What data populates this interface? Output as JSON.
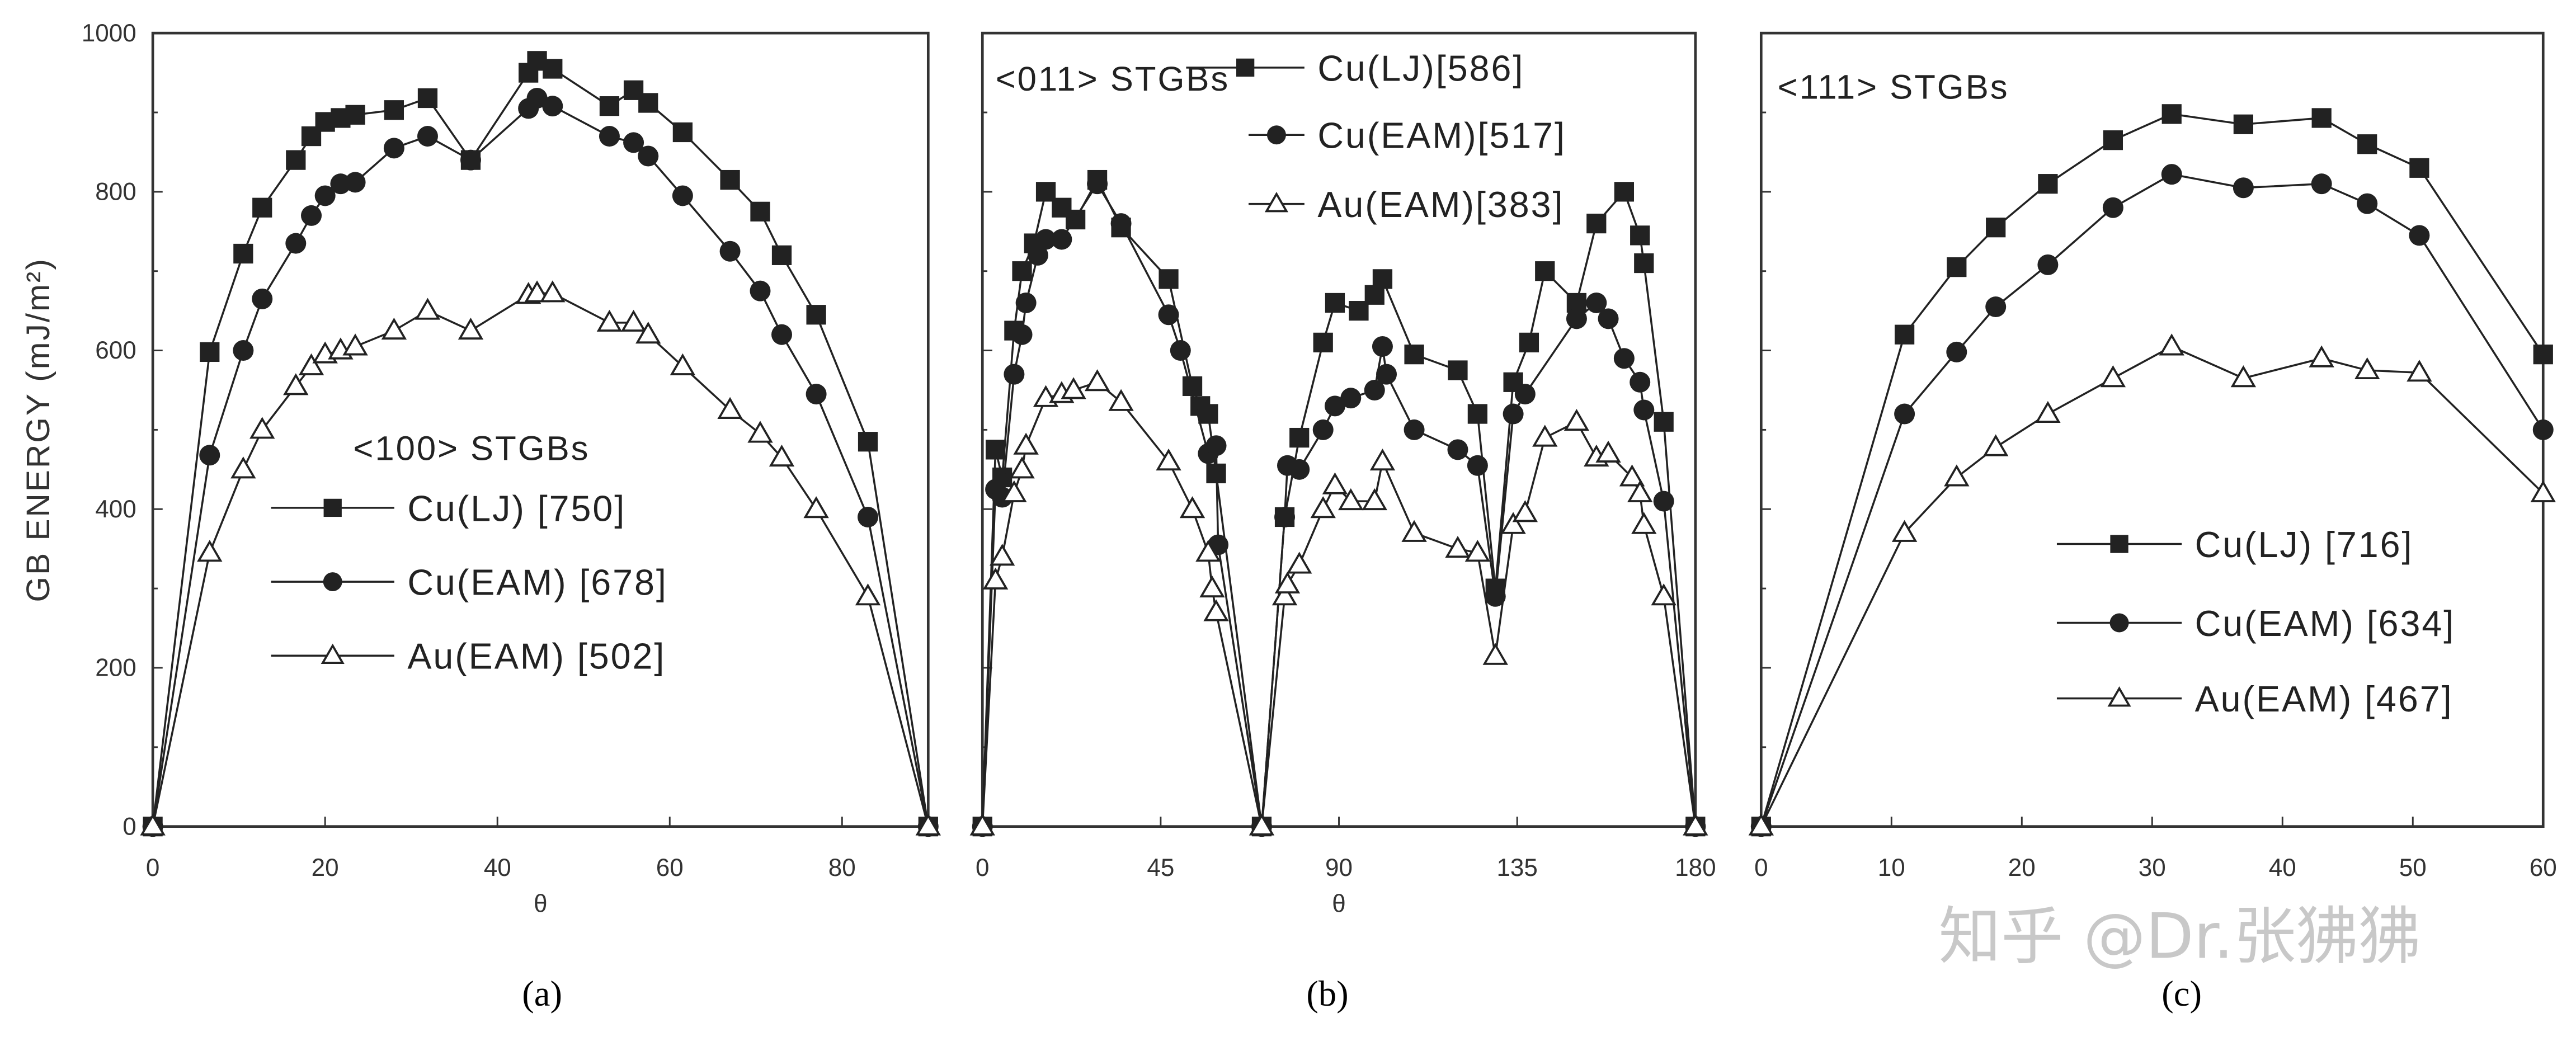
{
  "chart_data": [
    {
      "type": "line",
      "panel_label": "(a)",
      "title": "<100> STGBs",
      "xlabel": "θ",
      "ylabel": "GB ENERGY (mJ/m²)",
      "xlim": [
        0,
        90
      ],
      "ylim": [
        0,
        1000
      ],
      "xticks": [
        "0",
        "20",
        "40",
        "60",
        "80"
      ],
      "xtick_values": [
        0,
        20,
        40,
        60,
        80
      ],
      "yticks": [
        "0",
        "200",
        "400",
        "600",
        "800",
        "1000"
      ],
      "ytick_values": [
        0,
        200,
        400,
        600,
        800,
        1000
      ],
      "series": [
        {
          "name": "Cu(LJ)",
          "label": "Cu(LJ) [750]",
          "marker": "square",
          "points": [
            [
              0,
              0
            ],
            [
              6.6,
              598
            ],
            [
              10.5,
              722
            ],
            [
              12.7,
              780
            ],
            [
              16.6,
              840
            ],
            [
              18.4,
              870
            ],
            [
              20,
              888
            ],
            [
              21.8,
              893
            ],
            [
              23.5,
              897
            ],
            [
              28,
              903
            ],
            [
              31.9,
              918
            ],
            [
              36.9,
              840
            ],
            [
              43.6,
              950
            ],
            [
              44.6,
              965
            ],
            [
              46.4,
              955
            ],
            [
              53,
              908
            ],
            [
              55.8,
              928
            ],
            [
              57.5,
              912
            ],
            [
              61.5,
              875
            ],
            [
              67,
              815
            ],
            [
              70.5,
              775
            ],
            [
              73,
              720
            ],
            [
              77,
              645
            ],
            [
              83,
              485
            ],
            [
              90,
              0
            ]
          ]
        },
        {
          "name": "Cu(EAM)",
          "label": "Cu(EAM) [678]",
          "marker": "circle",
          "points": [
            [
              0,
              0
            ],
            [
              6.6,
              468
            ],
            [
              10.5,
              600
            ],
            [
              12.7,
              665
            ],
            [
              16.6,
              735
            ],
            [
              18.4,
              770
            ],
            [
              20,
              795
            ],
            [
              21.8,
              810
            ],
            [
              23.5,
              812
            ],
            [
              28,
              855
            ],
            [
              31.9,
              870
            ],
            [
              36.9,
              840
            ],
            [
              43.6,
              905
            ],
            [
              44.6,
              918
            ],
            [
              46.4,
              908
            ],
            [
              53,
              870
            ],
            [
              55.8,
              862
            ],
            [
              57.5,
              845
            ],
            [
              61.5,
              795
            ],
            [
              67,
              725
            ],
            [
              70.5,
              675
            ],
            [
              73,
              620
            ],
            [
              77,
              545
            ],
            [
              83,
              390
            ],
            [
              90,
              0
            ]
          ]
        },
        {
          "name": "Au(EAM)",
          "label": "Au(EAM) [502]",
          "marker": "triangle",
          "points": [
            [
              0,
              0
            ],
            [
              6.6,
              345
            ],
            [
              10.5,
              450
            ],
            [
              12.7,
              500
            ],
            [
              16.6,
              555
            ],
            [
              18.4,
              580
            ],
            [
              20,
              595
            ],
            [
              21.8,
              600
            ],
            [
              23.5,
              605
            ],
            [
              28,
              625
            ],
            [
              31.9,
              650
            ],
            [
              36.9,
              625
            ],
            [
              43.6,
              670
            ],
            [
              44.6,
              672
            ],
            [
              46.4,
              672
            ],
            [
              53,
              635
            ],
            [
              55.8,
              635
            ],
            [
              57.5,
              620
            ],
            [
              61.5,
              580
            ],
            [
              67,
              525
            ],
            [
              70.5,
              495
            ],
            [
              73,
              465
            ],
            [
              77,
              400
            ],
            [
              83,
              290
            ],
            [
              90,
              0
            ]
          ]
        }
      ]
    },
    {
      "type": "line",
      "panel_label": "(b)",
      "title": "<011> STGBs",
      "xlabel": "θ",
      "xlim": [
        0,
        180
      ],
      "ylim": [
        0,
        1000
      ],
      "xticks": [
        "0",
        "45",
        "90",
        "135",
        "180"
      ],
      "xtick_values": [
        0,
        45,
        90,
        135,
        180
      ],
      "series": [
        {
          "name": "Cu(LJ)",
          "label": "Cu(LJ)[586]",
          "marker": "square",
          "points": [
            [
              0,
              0
            ],
            [
              3.3,
              475
            ],
            [
              5,
              440
            ],
            [
              8,
              625
            ],
            [
              10,
              700
            ],
            [
              13,
              735
            ],
            [
              16,
              800
            ],
            [
              20,
              780
            ],
            [
              23.5,
              765
            ],
            [
              29,
              815
            ],
            [
              35,
              755
            ],
            [
              47,
              690
            ],
            [
              53,
              555
            ],
            [
              55,
              530
            ],
            [
              57,
              520
            ],
            [
              59,
              445
            ],
            [
              70.5,
              0
            ],
            [
              76.3,
              390
            ],
            [
              80,
              490
            ],
            [
              86,
              610
            ],
            [
              89,
              660
            ],
            [
              95,
              650
            ],
            [
              99,
              670
            ],
            [
              101,
              690
            ],
            [
              109,
              595
            ],
            [
              120,
              575
            ],
            [
              125,
              520
            ],
            [
              129.5,
              300
            ],
            [
              134,
              560
            ],
            [
              138,
              610
            ],
            [
              142,
              700
            ],
            [
              150,
              660
            ],
            [
              155,
              760
            ],
            [
              162,
              800
            ],
            [
              166,
              745
            ],
            [
              167,
              710
            ],
            [
              172,
              510
            ],
            [
              180,
              0
            ]
          ]
        },
        {
          "name": "Cu(EAM)",
          "label": "Cu(EAM)[517]",
          "marker": "circle",
          "points": [
            [
              0,
              0
            ],
            [
              3.3,
              425
            ],
            [
              5,
              415
            ],
            [
              8,
              570
            ],
            [
              10,
              620
            ],
            [
              11,
              660
            ],
            [
              14,
              720
            ],
            [
              16,
              740
            ],
            [
              20,
              740
            ],
            [
              29,
              810
            ],
            [
              35,
              760
            ],
            [
              47,
              645
            ],
            [
              50,
              600
            ],
            [
              57,
              470
            ],
            [
              59,
              480
            ],
            [
              59.5,
              355
            ],
            [
              70.5,
              0
            ],
            [
              76.3,
              390
            ],
            [
              77,
              455
            ],
            [
              80,
              450
            ],
            [
              86,
              500
            ],
            [
              89,
              530
            ],
            [
              93,
              540
            ],
            [
              99,
              550
            ],
            [
              101,
              605
            ],
            [
              102,
              570
            ],
            [
              109,
              500
            ],
            [
              120,
              475
            ],
            [
              125,
              455
            ],
            [
              129.5,
              290
            ],
            [
              134,
              520
            ],
            [
              137,
              545
            ],
            [
              150,
              640
            ],
            [
              155,
              660
            ],
            [
              158,
              640
            ],
            [
              162,
              590
            ],
            [
              166,
              560
            ],
            [
              167,
              525
            ],
            [
              172,
              410
            ],
            [
              180,
              0
            ]
          ]
        },
        {
          "name": "Au(EAM)",
          "label": "Au(EAM)[383]",
          "marker": "triangle",
          "points": [
            [
              0,
              0
            ],
            [
              3.3,
              310
            ],
            [
              5,
              340
            ],
            [
              8,
              420
            ],
            [
              10,
              450
            ],
            [
              11,
              480
            ],
            [
              16,
              540
            ],
            [
              20,
              545
            ],
            [
              23,
              550
            ],
            [
              29,
              560
            ],
            [
              35,
              535
            ],
            [
              47,
              460
            ],
            [
              53,
              400
            ],
            [
              57,
              345
            ],
            [
              58,
              300
            ],
            [
              59,
              270
            ],
            [
              70.5,
              0
            ],
            [
              76.3,
              290
            ],
            [
              77,
              305
            ],
            [
              80,
              330
            ],
            [
              86,
              400
            ],
            [
              89,
              430
            ],
            [
              93,
              410
            ],
            [
              99,
              410
            ],
            [
              101,
              460
            ],
            [
              109,
              370
            ],
            [
              120,
              350
            ],
            [
              125,
              345
            ],
            [
              129.5,
              215
            ],
            [
              134,
              380
            ],
            [
              137,
              395
            ],
            [
              142,
              490
            ],
            [
              150,
              510
            ],
            [
              155,
              465
            ],
            [
              158,
              470
            ],
            [
              164,
              440
            ],
            [
              166,
              420
            ],
            [
              167,
              380
            ],
            [
              172,
              290
            ],
            [
              180,
              0
            ]
          ]
        }
      ]
    },
    {
      "type": "line",
      "panel_label": "(c)",
      "title": "<111> STGBs",
      "xlim": [
        0,
        60
      ],
      "ylim": [
        0,
        1000
      ],
      "xticks": [
        "0",
        "10",
        "20",
        "30",
        "40",
        "50",
        "60"
      ],
      "xtick_values": [
        0,
        10,
        20,
        30,
        40,
        50,
        60
      ],
      "series": [
        {
          "name": "Cu(LJ)",
          "label": "Cu(LJ) [716]",
          "marker": "square",
          "points": [
            [
              0,
              0
            ],
            [
              11,
              620
            ],
            [
              15,
              705
            ],
            [
              18,
              755
            ],
            [
              22,
              810
            ],
            [
              27,
              865
            ],
            [
              31.5,
              898
            ],
            [
              37,
              885
            ],
            [
              43,
              893
            ],
            [
              46.5,
              860
            ],
            [
              50.5,
              830
            ],
            [
              60,
              595
            ]
          ]
        },
        {
          "name": "Cu(EAM)",
          "label": "Cu(EAM) [634]",
          "marker": "circle",
          "points": [
            [
              0,
              0
            ],
            [
              11,
              520
            ],
            [
              15,
              598
            ],
            [
              18,
              655
            ],
            [
              22,
              708
            ],
            [
              27,
              780
            ],
            [
              31.5,
              822
            ],
            [
              37,
              805
            ],
            [
              43,
              810
            ],
            [
              46.5,
              785
            ],
            [
              50.5,
              745
            ],
            [
              60,
              500
            ]
          ]
        },
        {
          "name": "Au(EAM)",
          "label": "Au(EAM) [467]",
          "marker": "triangle",
          "points": [
            [
              0,
              0
            ],
            [
              11,
              370
            ],
            [
              15,
              440
            ],
            [
              18,
              478
            ],
            [
              22,
              520
            ],
            [
              27,
              565
            ],
            [
              31.5,
              605
            ],
            [
              37,
              565
            ],
            [
              43,
              590
            ],
            [
              46.5,
              575
            ],
            [
              50.5,
              572
            ],
            [
              60,
              420
            ]
          ]
        }
      ]
    }
  ],
  "watermark": "知乎 @Dr.张狒狒",
  "colors": {
    "line": "#222222",
    "axis": "#333333"
  }
}
